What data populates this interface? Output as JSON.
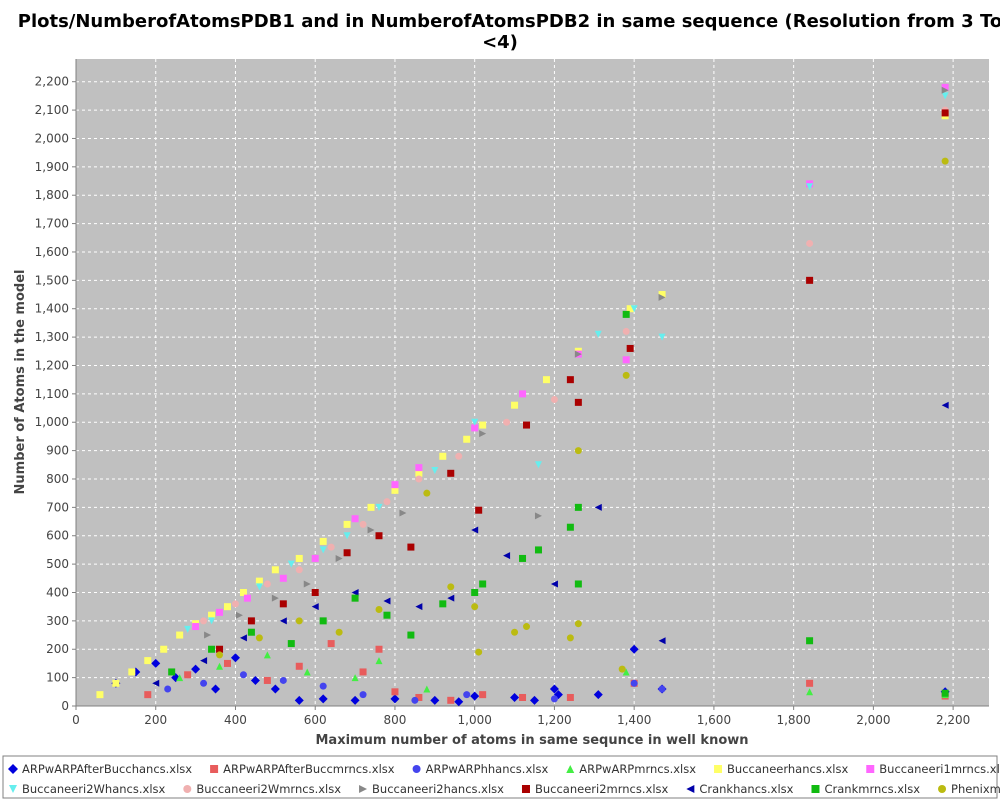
{
  "chart_data": {
    "type": "scatter",
    "title_lines": [
      "Plots/NumberofAtomsPDB1 and in NumberofAtomsPDB2 in same sequence (Resolution from 3 To",
      "<4)"
    ],
    "xlabel": "Maximum number of atoms in same sequnce in well known",
    "ylabel": "Number of Atoms in the model",
    "xlim": [
      0,
      2290
    ],
    "ylim": [
      0,
      2280
    ],
    "x_ticks": [
      0,
      200,
      400,
      600,
      800,
      1000,
      1200,
      1400,
      1600,
      1800,
      2000,
      2200
    ],
    "x_tick_labels": [
      "0",
      "200",
      "400",
      "600",
      "800",
      "1,000",
      "1,200",
      "1,400",
      "1,600",
      "1,800",
      "2,000",
      "2,200"
    ],
    "y_ticks": [
      0,
      100,
      200,
      300,
      400,
      500,
      600,
      700,
      800,
      900,
      1000,
      1100,
      1200,
      1300,
      1400,
      1500,
      1600,
      1700,
      1800,
      1900,
      2000,
      2100,
      2200
    ],
    "y_tick_labels": [
      "0",
      "100",
      "200",
      "300",
      "400",
      "500",
      "600",
      "700",
      "800",
      "900",
      "1,000",
      "1,100",
      "1,200",
      "1,300",
      "1,400",
      "1,500",
      "1,600",
      "1,700",
      "1,800",
      "1,900",
      "2,000",
      "2,100",
      "2,200"
    ],
    "grid": true,
    "plot_background": "#c0c0c0",
    "legend_position": "bottom",
    "series": [
      {
        "name": "ARPwARPAfterBucchancs.xlsx",
        "color": "#0000dd",
        "marker": "diamond",
        "points": [
          [
            100,
            80
          ],
          [
            150,
            120
          ],
          [
            200,
            150
          ],
          [
            250,
            100
          ],
          [
            300,
            130
          ],
          [
            350,
            60
          ],
          [
            400,
            170
          ],
          [
            450,
            90
          ],
          [
            500,
            60
          ],
          [
            560,
            20
          ],
          [
            620,
            25
          ],
          [
            700,
            20
          ],
          [
            800,
            25
          ],
          [
            900,
            20
          ],
          [
            960,
            15
          ],
          [
            1000,
            35
          ],
          [
            1100,
            30
          ],
          [
            1150,
            20
          ],
          [
            1200,
            60
          ],
          [
            1210,
            40
          ],
          [
            1310,
            40
          ],
          [
            1400,
            200
          ],
          [
            1470,
            60
          ],
          [
            2180,
            50
          ]
        ]
      },
      {
        "name": "ARPwARPAfterBuccmrncs.xlsx",
        "color": "#e85c5c",
        "marker": "square",
        "points": [
          [
            180,
            40
          ],
          [
            280,
            110
          ],
          [
            380,
            150
          ],
          [
            480,
            90
          ],
          [
            560,
            140
          ],
          [
            640,
            220
          ],
          [
            720,
            120
          ],
          [
            760,
            200
          ],
          [
            800,
            50
          ],
          [
            860,
            30
          ],
          [
            940,
            20
          ],
          [
            1020,
            40
          ],
          [
            1120,
            30
          ],
          [
            1240,
            30
          ],
          [
            1400,
            80
          ],
          [
            1840,
            80
          ],
          [
            2180,
            35
          ]
        ]
      },
      {
        "name": "ARPwARPhhancs.xlsx",
        "color": "#4444ee",
        "marker": "circle",
        "points": [
          [
            230,
            60
          ],
          [
            320,
            80
          ],
          [
            420,
            110
          ],
          [
            520,
            90
          ],
          [
            620,
            70
          ],
          [
            720,
            40
          ],
          [
            850,
            20
          ],
          [
            980,
            40
          ],
          [
            1200,
            25
          ],
          [
            1400,
            80
          ],
          [
            1470,
            60
          ]
        ]
      },
      {
        "name": "ARPwARPmrncs.xlsx",
        "color": "#44ee44",
        "marker": "triangle-up",
        "points": [
          [
            260,
            100
          ],
          [
            360,
            140
          ],
          [
            480,
            180
          ],
          [
            580,
            120
          ],
          [
            700,
            100
          ],
          [
            760,
            160
          ],
          [
            880,
            60
          ],
          [
            1380,
            120
          ],
          [
            1840,
            50
          ],
          [
            2180,
            40
          ]
        ]
      },
      {
        "name": "Buccaneerhancs.xlsx",
        "color": "#ffff66",
        "marker": "square",
        "points": [
          [
            60,
            40
          ],
          [
            100,
            80
          ],
          [
            140,
            120
          ],
          [
            180,
            160
          ],
          [
            220,
            200
          ],
          [
            260,
            250
          ],
          [
            300,
            290
          ],
          [
            340,
            320
          ],
          [
            380,
            350
          ],
          [
            420,
            400
          ],
          [
            460,
            440
          ],
          [
            500,
            480
          ],
          [
            560,
            520
          ],
          [
            620,
            580
          ],
          [
            680,
            640
          ],
          [
            740,
            700
          ],
          [
            800,
            760
          ],
          [
            860,
            820
          ],
          [
            920,
            880
          ],
          [
            980,
            940
          ],
          [
            1020,
            990
          ],
          [
            1100,
            1060
          ],
          [
            1180,
            1150
          ],
          [
            1260,
            1250
          ],
          [
            1390,
            1400
          ],
          [
            1470,
            1450
          ],
          [
            2180,
            2080
          ]
        ]
      },
      {
        "name": "Buccaneeri1mrncs.xlsx",
        "color": "#ff66ff",
        "marker": "square",
        "points": [
          [
            300,
            280
          ],
          [
            360,
            330
          ],
          [
            430,
            380
          ],
          [
            520,
            450
          ],
          [
            600,
            520
          ],
          [
            700,
            660
          ],
          [
            800,
            780
          ],
          [
            860,
            840
          ],
          [
            1000,
            980
          ],
          [
            1120,
            1100
          ],
          [
            1260,
            1240
          ],
          [
            1380,
            1220
          ],
          [
            1840,
            1840
          ],
          [
            2180,
            2180
          ]
        ]
      },
      {
        "name": "Buccaneeri2Whancs.xlsx",
        "color": "#66eeee",
        "marker": "triangle-down",
        "points": [
          [
            280,
            270
          ],
          [
            340,
            300
          ],
          [
            460,
            420
          ],
          [
            540,
            500
          ],
          [
            620,
            550
          ],
          [
            680,
            600
          ],
          [
            760,
            700
          ],
          [
            900,
            830
          ],
          [
            1000,
            1000
          ],
          [
            1160,
            850
          ],
          [
            1310,
            1310
          ],
          [
            1400,
            1400
          ],
          [
            1470,
            1300
          ],
          [
            1840,
            1830
          ],
          [
            2180,
            2150
          ]
        ]
      },
      {
        "name": "Buccaneeri2Wmrncs.xlsx",
        "color": "#f0b0b0",
        "marker": "circle",
        "points": [
          [
            320,
            300
          ],
          [
            400,
            360
          ],
          [
            480,
            430
          ],
          [
            560,
            480
          ],
          [
            640,
            560
          ],
          [
            720,
            640
          ],
          [
            780,
            720
          ],
          [
            860,
            800
          ],
          [
            960,
            880
          ],
          [
            1080,
            1000
          ],
          [
            1200,
            1080
          ],
          [
            1380,
            1320
          ],
          [
            1840,
            1630
          ],
          [
            2180,
            2100
          ]
        ]
      },
      {
        "name": "Buccaneeri2hancs.xlsx",
        "color": "#888888",
        "marker": "triangle-right",
        "points": [
          [
            330,
            250
          ],
          [
            410,
            320
          ],
          [
            500,
            380
          ],
          [
            580,
            430
          ],
          [
            660,
            520
          ],
          [
            740,
            620
          ],
          [
            820,
            680
          ],
          [
            940,
            820
          ],
          [
            1020,
            960
          ],
          [
            1160,
            670
          ],
          [
            1260,
            1240
          ],
          [
            1470,
            1440
          ],
          [
            2180,
            2170
          ]
        ]
      },
      {
        "name": "Buccaneeri2mrncs.xlsx",
        "color": "#aa0000",
        "marker": "square",
        "points": [
          [
            360,
            200
          ],
          [
            440,
            300
          ],
          [
            520,
            360
          ],
          [
            600,
            400
          ],
          [
            680,
            540
          ],
          [
            760,
            600
          ],
          [
            840,
            560
          ],
          [
            940,
            820
          ],
          [
            1010,
            690
          ],
          [
            1130,
            990
          ],
          [
            1240,
            1150
          ],
          [
            1260,
            1070
          ],
          [
            1390,
            1260
          ],
          [
            1840,
            1500
          ],
          [
            2180,
            2090
          ]
        ]
      },
      {
        "name": "Crankhancs.xlsx",
        "color": "#0000aa",
        "marker": "triangle-left",
        "points": [
          [
            200,
            80
          ],
          [
            320,
            160
          ],
          [
            420,
            240
          ],
          [
            520,
            300
          ],
          [
            600,
            350
          ],
          [
            700,
            400
          ],
          [
            780,
            370
          ],
          [
            860,
            350
          ],
          [
            940,
            380
          ],
          [
            1000,
            620
          ],
          [
            1080,
            530
          ],
          [
            1200,
            430
          ],
          [
            1310,
            700
          ],
          [
            1470,
            230
          ],
          [
            2180,
            1060
          ]
        ]
      },
      {
        "name": "Crankmrncs.xlsx",
        "color": "#11bb11",
        "marker": "square",
        "points": [
          [
            240,
            120
          ],
          [
            340,
            200
          ],
          [
            440,
            260
          ],
          [
            540,
            220
          ],
          [
            620,
            300
          ],
          [
            700,
            380
          ],
          [
            780,
            320
          ],
          [
            840,
            250
          ],
          [
            920,
            360
          ],
          [
            1000,
            400
          ],
          [
            1020,
            430
          ],
          [
            1120,
            520
          ],
          [
            1160,
            550
          ],
          [
            1240,
            630
          ],
          [
            1260,
            700
          ],
          [
            1260,
            430
          ],
          [
            1380,
            1380
          ],
          [
            1840,
            230
          ],
          [
            2180,
            45
          ]
        ]
      },
      {
        "name": "Phenixmrncs.xlsx",
        "color": "#bbbb11",
        "marker": "circle",
        "points": [
          [
            360,
            180
          ],
          [
            460,
            240
          ],
          [
            560,
            300
          ],
          [
            660,
            260
          ],
          [
            760,
            340
          ],
          [
            880,
            750
          ],
          [
            940,
            420
          ],
          [
            1000,
            350
          ],
          [
            1010,
            190
          ],
          [
            1100,
            260
          ],
          [
            1130,
            280
          ],
          [
            1240,
            240
          ],
          [
            1260,
            900
          ],
          [
            1260,
            290
          ],
          [
            1380,
            1165
          ],
          [
            1370,
            130
          ],
          [
            2180,
            1920
          ]
        ]
      }
    ]
  }
}
